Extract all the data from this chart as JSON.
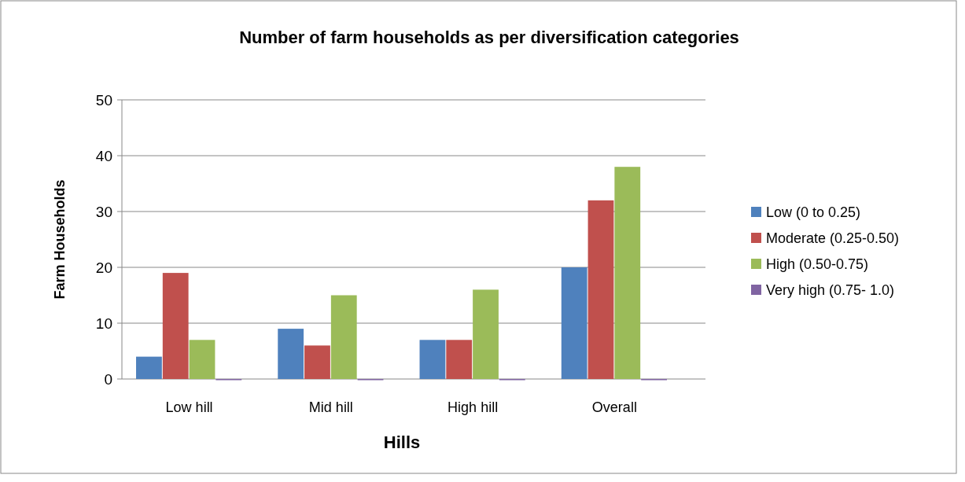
{
  "chart_data": {
    "type": "bar",
    "title": "Number of farm households as per diversification categories",
    "xlabel": "Hills",
    "ylabel": "Farm Households",
    "categories": [
      "Low hill",
      "Mid hill",
      "High hill",
      "Overall"
    ],
    "series": [
      {
        "name": "Low (0 to 0.25)",
        "color": "#4f81bd",
        "values": [
          4,
          9,
          7,
          20
        ]
      },
      {
        "name": "Moderate (0.25-0.50)",
        "color": "#c0504d",
        "values": [
          19,
          6,
          7,
          32
        ]
      },
      {
        "name": "High (0.50-0.75)",
        "color": "#9bbb59",
        "values": [
          7,
          15,
          16,
          38
        ]
      },
      {
        "name": "Very high (0.75- 1.0)",
        "color": "#8064a2",
        "values": [
          0,
          0,
          0,
          0
        ]
      }
    ],
    "ylim": [
      0,
      50
    ],
    "yticks": [
      0,
      10,
      20,
      30,
      40,
      50
    ],
    "grid": "y",
    "legend": "right"
  }
}
